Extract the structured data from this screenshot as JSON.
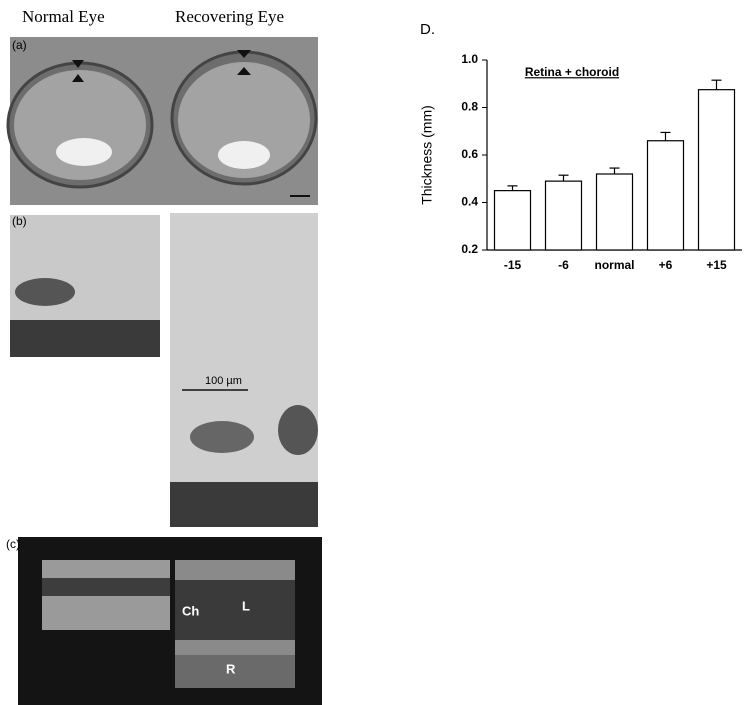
{
  "figure": {
    "headings": [
      "Normal Eye",
      "Recovering Eye"
    ],
    "panel_labels": [
      "(a)",
      "(b)",
      "(c)"
    ],
    "scale_bar": "100 µm",
    "annotations": [
      "Ch",
      "L",
      "R"
    ]
  },
  "chart_data": {
    "type": "bar",
    "title": "D.",
    "subtitle": "Retina + choroid",
    "y_label": "Thickness (mm)",
    "categories": [
      "-15",
      "-6",
      "normal",
      "+6",
      "+15"
    ],
    "values": [
      0.45,
      0.49,
      0.52,
      0.66,
      0.875
    ],
    "errors": [
      0.02,
      0.025,
      0.025,
      0.035,
      0.04
    ],
    "color": "#ffffff",
    "ylim": [
      0.2,
      1.0
    ],
    "yticks": [
      0.2,
      0.4,
      0.6,
      0.8,
      {
        "value": 1.0,
        "label": "1.0"
      }
    ]
  }
}
